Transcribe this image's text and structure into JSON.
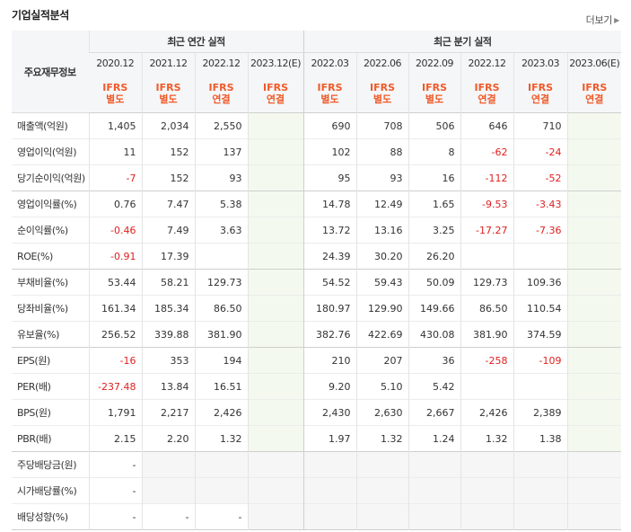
{
  "header": {
    "title": "기업실적분석",
    "more_label": "더보기"
  },
  "table": {
    "corner_label": "주요재무정보",
    "annual_group_label": "최근 연간 실적",
    "quarter_group_label": "최근 분기 실적",
    "periods": [
      "2020.12",
      "2021.12",
      "2022.12",
      "2023.12(E)",
      "2022.03",
      "2022.06",
      "2022.09",
      "2022.12",
      "2023.03",
      "2023.06(E)"
    ],
    "standards": [
      [
        "IFRS",
        "별도"
      ],
      [
        "IFRS",
        "별도"
      ],
      [
        "IFRS",
        "연결"
      ],
      [
        "IFRS",
        "연결"
      ],
      [
        "IFRS",
        "별도"
      ],
      [
        "IFRS",
        "별도"
      ],
      [
        "IFRS",
        "별도"
      ],
      [
        "IFRS",
        "연결"
      ],
      [
        "IFRS",
        "연결"
      ],
      [
        "IFRS",
        "연결"
      ]
    ],
    "rows": [
      {
        "label": "매출액(억원)",
        "values": [
          "1,405",
          "2,034",
          "2,550",
          "",
          "690",
          "708",
          "506",
          "646",
          "710",
          ""
        ],
        "group_end": false
      },
      {
        "label": "영업이익(억원)",
        "values": [
          "11",
          "152",
          "137",
          "",
          "102",
          "88",
          "8",
          "-62",
          "-24",
          ""
        ],
        "group_end": false
      },
      {
        "label": "당기순이익(억원)",
        "values": [
          "-7",
          "152",
          "93",
          "",
          "95",
          "93",
          "16",
          "-112",
          "-52",
          ""
        ],
        "group_end": true
      },
      {
        "label": "영업이익률(%)",
        "values": [
          "0.76",
          "7.47",
          "5.38",
          "",
          "14.78",
          "12.49",
          "1.65",
          "-9.53",
          "-3.43",
          ""
        ],
        "group_end": false
      },
      {
        "label": "순이익률(%)",
        "values": [
          "-0.46",
          "7.49",
          "3.63",
          "",
          "13.72",
          "13.16",
          "3.25",
          "-17.27",
          "-7.36",
          ""
        ],
        "group_end": false
      },
      {
        "label": "ROE(%)",
        "values": [
          "-0.91",
          "17.39",
          "",
          "",
          "24.39",
          "30.20",
          "26.20",
          "",
          "",
          ""
        ],
        "group_end": true
      },
      {
        "label": "부채비율(%)",
        "values": [
          "53.44",
          "58.21",
          "129.73",
          "",
          "54.52",
          "59.43",
          "50.09",
          "129.73",
          "109.36",
          ""
        ],
        "group_end": false
      },
      {
        "label": "당좌비율(%)",
        "values": [
          "161.34",
          "185.34",
          "86.50",
          "",
          "180.97",
          "129.90",
          "149.66",
          "86.50",
          "110.54",
          ""
        ],
        "group_end": false
      },
      {
        "label": "유보율(%)",
        "values": [
          "256.52",
          "339.88",
          "381.90",
          "",
          "382.76",
          "422.69",
          "430.08",
          "381.90",
          "374.59",
          ""
        ],
        "group_end": true
      },
      {
        "label": "EPS(원)",
        "values": [
          "-16",
          "353",
          "194",
          "",
          "210",
          "207",
          "36",
          "-258",
          "-109",
          ""
        ],
        "group_end": false
      },
      {
        "label": "PER(배)",
        "values": [
          "-237.48",
          "13.84",
          "16.51",
          "",
          "9.20",
          "5.10",
          "5.42",
          "",
          "",
          ""
        ],
        "group_end": false
      },
      {
        "label": "BPS(원)",
        "values": [
          "1,791",
          "2,217",
          "2,426",
          "",
          "2,430",
          "2,630",
          "2,667",
          "2,426",
          "2,389",
          ""
        ],
        "group_end": false
      },
      {
        "label": "PBR(배)",
        "values": [
          "2.15",
          "2.20",
          "1.32",
          "",
          "1.97",
          "1.32",
          "1.24",
          "1.32",
          "1.38",
          ""
        ],
        "group_end": true
      },
      {
        "label": "주당배당금(원)",
        "values": [
          "-",
          null,
          null,
          null,
          null,
          null,
          null,
          null,
          null,
          null
        ],
        "group_end": false
      },
      {
        "label": "시가배당률(%)",
        "values": [
          "-",
          null,
          null,
          null,
          null,
          null,
          null,
          null,
          null,
          null
        ],
        "group_end": false
      },
      {
        "label": "배당성향(%)",
        "values": [
          "-",
          "-",
          "-",
          null,
          null,
          null,
          null,
          null,
          null,
          null
        ],
        "group_end": false
      }
    ]
  },
  "colors": {
    "accent_orange": "#f05a28",
    "negative_red": "#e02020",
    "estimate_bg": "#f3f9ee",
    "empty_bg": "#f6f6f6"
  }
}
